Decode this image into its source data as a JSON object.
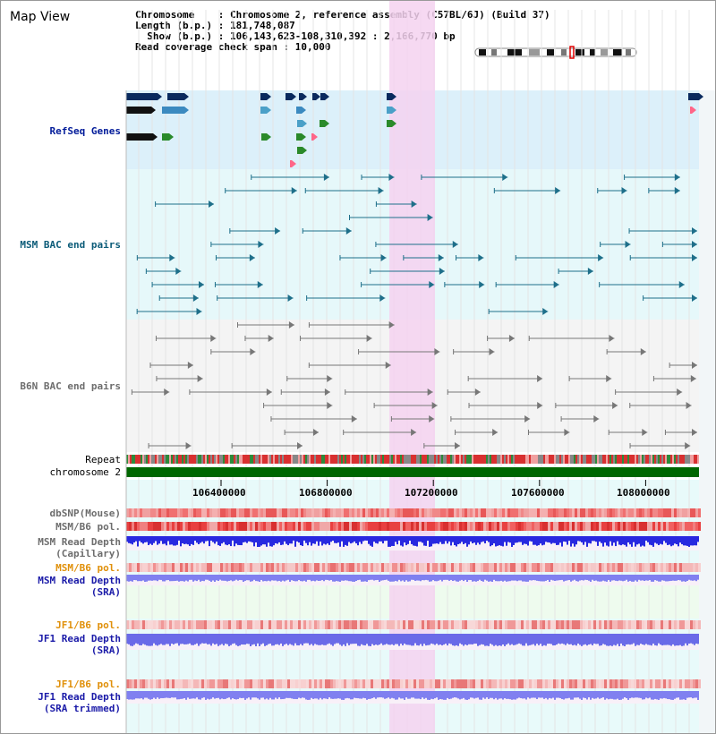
{
  "window": {
    "title": "Map View"
  },
  "info": {
    "line1": "Chromosome    : Chromosome 2, reference assembly (C57BL/6J) (Build 37)",
    "line2": "Length (b.p.) : 181,748,087",
    "line3": "  Show (b.p.) : 106,143,623-108,310,392 : 2,166,770 bp",
    "line4": "Read coverage check span : 10,000"
  },
  "tracks": {
    "refseq": "RefSeq Genes",
    "msm_bac": "MSM BAC end pairs",
    "b6n_bac": "B6N BAC end pairs",
    "repeat": "Repeat",
    "chrom": "chromosome 2",
    "dbsnp": "dbSNP(Mouse)",
    "msmb6_pol_1": "MSM/B6 pol.",
    "msm_depth_cap_1": "MSM Read Depth",
    "msm_depth_cap_2": "(Capillary)",
    "msmb6_pol_2": "MSM/B6 pol.",
    "msm_depth_sra_1": "MSM Read Depth",
    "msm_depth_sra_2": "(SRA)",
    "jf1b6_pol_1": "JF1/B6 pol.",
    "jf1_depth_sra_1": "JF1 Read Depth",
    "jf1_depth_sra_2": "(SRA)",
    "jf1b6_pol_2": "JF1/B6 pol.",
    "jf1_depth_trim_1": "JF1 Read Depth",
    "jf1_depth_trim_2": "(SRA trimmed)"
  },
  "axis": {
    "ticks": [
      "106400000",
      "106800000",
      "107200000",
      "107600000",
      "108000000"
    ]
  },
  "colors": {
    "highlight": "#f4d2f0",
    "refseq_bg": "#dcf0fa",
    "gene_dark": "#0a2a5e",
    "bac_teal": "#1e6f8a",
    "bac_gray": "#777777",
    "chrom_green": "#006600",
    "snp_red": "#e84040",
    "depth_blue": "#2828e0",
    "depth_light": "#8080f0"
  }
}
